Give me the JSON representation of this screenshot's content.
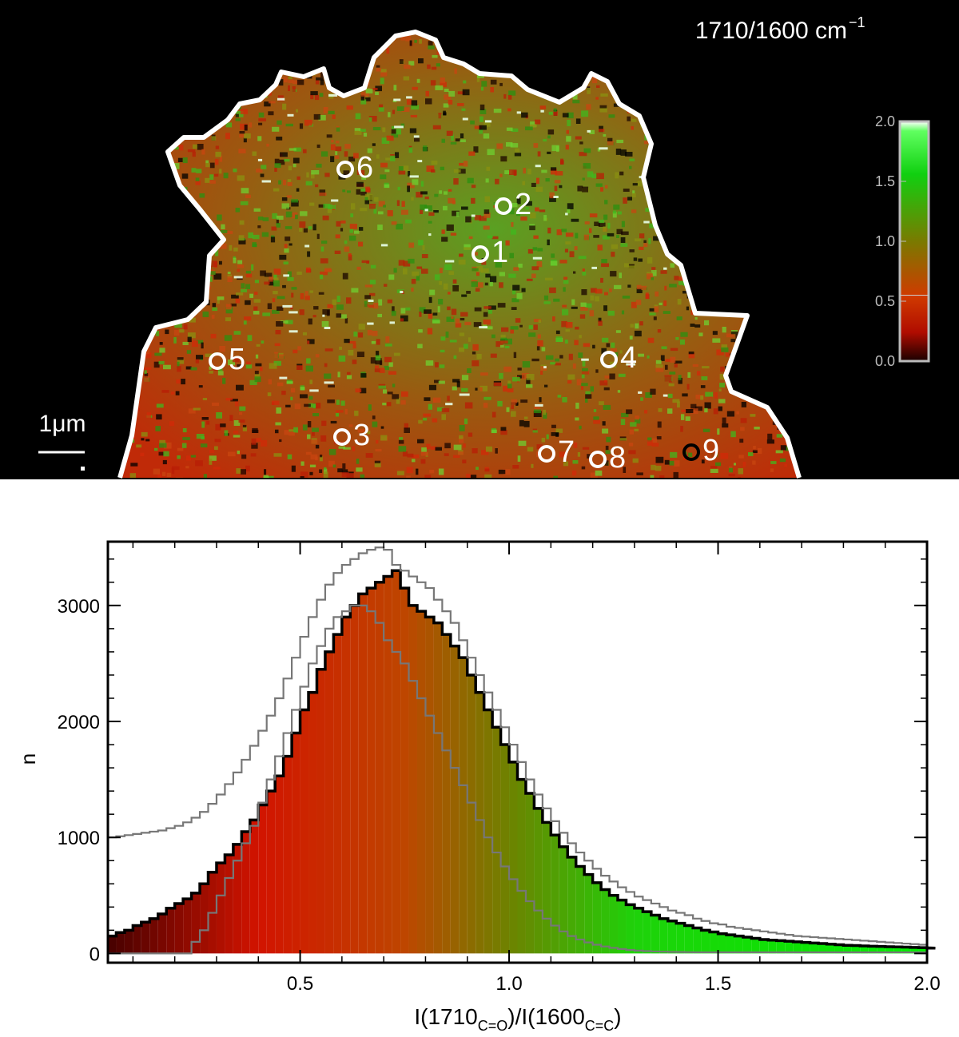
{
  "map": {
    "title": "1710/1600 cm",
    "title_sup": "−1",
    "scale_bar_label": "1μm",
    "colorbar": {
      "ticks": [
        "2.0",
        "1.5",
        "1.0",
        "0.5",
        "0.0"
      ],
      "range": [
        0.0,
        2.0
      ],
      "marker_value": 0.55,
      "colors": [
        "#1a0000",
        "#cc1500",
        "#d03a00",
        "#7a7a00",
        "#00e000",
        "#ffffff"
      ]
    },
    "points": [
      {
        "label": "1",
        "color": "white"
      },
      {
        "label": "2",
        "color": "white"
      },
      {
        "label": "3",
        "color": "white"
      },
      {
        "label": "4",
        "color": "white"
      },
      {
        "label": "5",
        "color": "white"
      },
      {
        "label": "6",
        "color": "white"
      },
      {
        "label": "7",
        "color": "white"
      },
      {
        "label": "8",
        "color": "white"
      },
      {
        "label": "9",
        "color": "black"
      }
    ],
    "colors": {
      "background": "#000000",
      "outline": "#ffffff"
    }
  },
  "chart_data": {
    "type": "bar",
    "xlabel": "I(1710",
    "xlabel_sub1": "C=O",
    "xlabel_mid": ")/I(1600",
    "xlabel_sub2": "C=C",
    "xlabel_end": ")",
    "ylabel": "n",
    "xlim": [
      0.04,
      2.0
    ],
    "ylim": [
      -80,
      3550
    ],
    "xticks": [
      "0.5",
      "1.0",
      "1.5",
      "2.0"
    ],
    "yticks": [
      "0",
      "1000",
      "2000",
      "3000"
    ],
    "bin_width": 0.02,
    "x_start": 0.04,
    "series": [
      {
        "values": [
          150,
          180,
          200,
          240,
          270,
          300,
          340,
          390,
          430,
          470,
          520,
          600,
          700,
          780,
          850,
          940,
          1050,
          1150,
          1280,
          1400,
          1530,
          1700,
          1900,
          2100,
          2250,
          2450,
          2600,
          2750,
          2900,
          3000,
          3100,
          3150,
          3200,
          3250,
          3300,
          3150,
          3000,
          2950,
          2900,
          2850,
          2750,
          2650,
          2550,
          2400,
          2250,
          2100,
          1950,
          1800,
          1650,
          1500,
          1380,
          1250,
          1130,
          1020,
          920,
          830,
          750,
          680,
          610,
          550,
          500,
          460,
          420,
          390,
          360,
          330,
          300,
          280,
          260,
          240,
          220,
          200,
          185,
          170,
          160,
          150,
          140,
          130,
          120,
          115,
          110,
          105,
          100,
          95,
          90,
          85,
          80,
          75,
          70,
          68,
          65,
          62,
          60,
          58,
          56,
          54,
          52,
          50,
          48,
          46
        ],
        "color": "#000000"
      },
      {
        "values": [
          1000,
          1010,
          1020,
          1030,
          1040,
          1050,
          1060,
          1080,
          1100,
          1130,
          1170,
          1220,
          1290,
          1370,
          1460,
          1560,
          1670,
          1790,
          1920,
          2050,
          2200,
          2370,
          2550,
          2730,
          2900,
          3050,
          3180,
          3280,
          3350,
          3400,
          3450,
          3480,
          3500,
          3480,
          3350,
          3300,
          3250,
          3200,
          3150,
          3050,
          2950,
          2850,
          2700,
          2550,
          2400,
          2250,
          2100,
          1950,
          1800,
          1650,
          1500,
          1370,
          1250,
          1140,
          1040,
          950,
          870,
          800,
          730,
          670,
          620,
          570,
          530,
          490,
          460,
          430,
          400,
          370,
          350,
          330,
          300,
          280,
          260,
          250,
          230,
          220,
          210,
          200,
          190,
          180,
          170,
          160,
          150,
          145,
          140,
          135,
          130,
          125,
          120,
          115,
          110,
          105,
          100,
          95,
          90,
          85,
          80,
          75
        ],
        "color": "#777777"
      },
      {
        "values": [
          0,
          0,
          0,
          0,
          0,
          0,
          0,
          0,
          0,
          0,
          100,
          200,
          350,
          500,
          650,
          800,
          950,
          1100,
          1300,
          1500,
          1700,
          1900,
          2100,
          2300,
          2500,
          2650,
          2800,
          2900,
          2950,
          3000,
          3000,
          2950,
          2850,
          2700,
          2600,
          2500,
          2350,
          2200,
          2050,
          1900,
          1750,
          1600,
          1450,
          1300,
          1150,
          1000,
          870,
          750,
          640,
          540,
          450,
          370,
          300,
          240,
          190,
          150,
          120,
          95,
          75,
          60,
          48,
          38,
          30,
          24,
          20,
          17,
          15,
          13,
          12,
          11,
          10,
          10,
          10,
          10,
          10,
          10,
          10,
          10,
          10,
          10,
          10,
          10,
          10,
          10,
          10,
          10,
          10,
          10,
          10,
          10,
          10,
          10,
          10,
          10,
          10,
          10,
          10,
          10
        ],
        "color": "#777777"
      }
    ]
  }
}
